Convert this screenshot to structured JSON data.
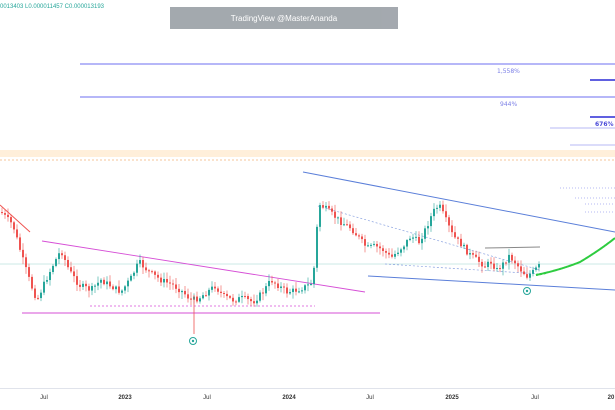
{
  "header": {
    "ohlc_text": "0013403 L0.000011457 C0.000013193"
  },
  "watermark": {
    "text": "TradingView @MasterAnanda"
  },
  "fib_levels": [
    {
      "label": "1,558%"
    },
    {
      "label": "944%"
    },
    {
      "label": "676%"
    }
  ],
  "xaxis": {
    "labels": [
      "Jul",
      "2023",
      "Jul",
      "2024",
      "Jul",
      "2025",
      "Jul",
      "20"
    ]
  },
  "colors": {
    "bull": "#26a69a",
    "bear": "#ef5350",
    "trend_blue": "#5b7fd9",
    "trend_pink": "#d64fd6",
    "fib_line": "#7b7fe6",
    "projection": "#2ecc40",
    "highlight_band": "#ffd8a8"
  },
  "chart_data": {
    "type": "candlestick",
    "xlabel": "",
    "ylabel": "",
    "annotations": [
      "1,558%",
      "944%",
      "676%"
    ],
    "notes_visible_markers": [
      "green circled target markers",
      "green curved projection arrow"
    ]
  }
}
